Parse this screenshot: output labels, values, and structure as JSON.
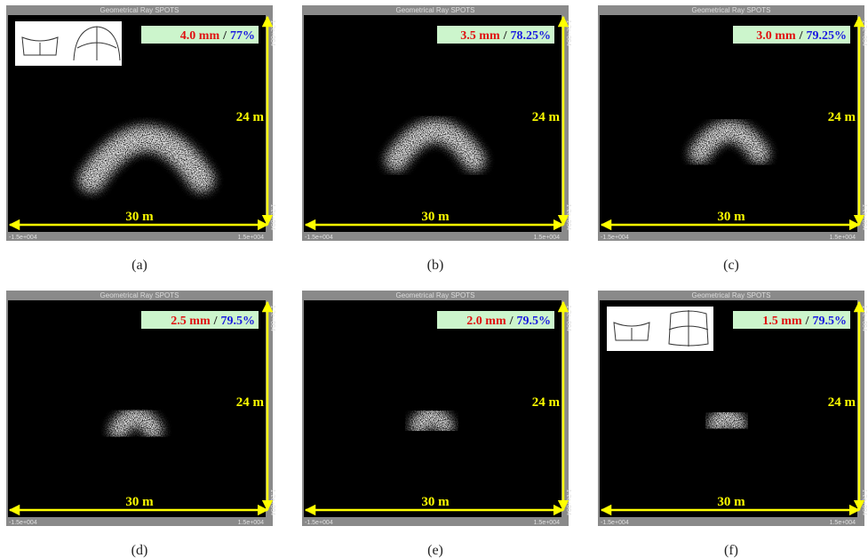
{
  "panels": [
    {
      "header": "Geometrical Ray SPOTS",
      "size": "4.0 mm",
      "separator": "/",
      "efficiency": "77%",
      "height_label": "24 m",
      "width_label": "30 m",
      "x_min": "-1.5e+004",
      "x_max": "1.5e+004",
      "y_min": "-1.2e+004",
      "y_max": "1.2e+004",
      "caption": "(a)"
    },
    {
      "header": "Geometrical Ray SPOTS",
      "size": "3.5 mm",
      "separator": "/",
      "efficiency": "78.25%",
      "height_label": "24 m",
      "width_label": "30 m",
      "x_min": "-1.5e+004",
      "x_max": "1.5e+004",
      "y_min": "-1.2e+004",
      "y_max": "1.2e+004",
      "caption": "(b)"
    },
    {
      "header": "Geometrical Ray SPOTS",
      "size": "3.0 mm",
      "separator": "/",
      "efficiency": "79.25%",
      "height_label": "24 m",
      "width_label": "30 m",
      "x_min": "-1.5e+004",
      "x_max": "1.5e+004",
      "y_min": "-1.2e+004",
      "y_max": "1.2e+004",
      "caption": "(c)"
    },
    {
      "header": "Geometrical Ray SPOTS",
      "size": "2.5 mm",
      "separator": "/",
      "efficiency": "79.5%",
      "height_label": "24 m",
      "width_label": "30 m",
      "x_min": "-1.5e+004",
      "x_max": "1.5e+004",
      "y_min": "-1.2e+004",
      "y_max": "1.2e+004",
      "caption": "(d)"
    },
    {
      "header": "Geometrical Ray SPOTS",
      "size": "2.0 mm",
      "separator": "/",
      "efficiency": "79.5%",
      "height_label": "24 m",
      "width_label": "30 m",
      "x_min": "-1.5e+004",
      "x_max": "1.5e+004",
      "y_min": "-1.2e+004",
      "y_max": "1.2e+004",
      "caption": "(e)"
    },
    {
      "header": "Geometrical Ray SPOTS",
      "size": "1.5 mm",
      "separator": "/",
      "efficiency": "79.5%",
      "height_label": "24 m",
      "width_label": "30 m",
      "x_min": "-1.5e+004",
      "x_max": "1.5e+004",
      "y_min": "-1.2e+004",
      "y_max": "1.2e+004",
      "caption": "(f)"
    }
  ]
}
